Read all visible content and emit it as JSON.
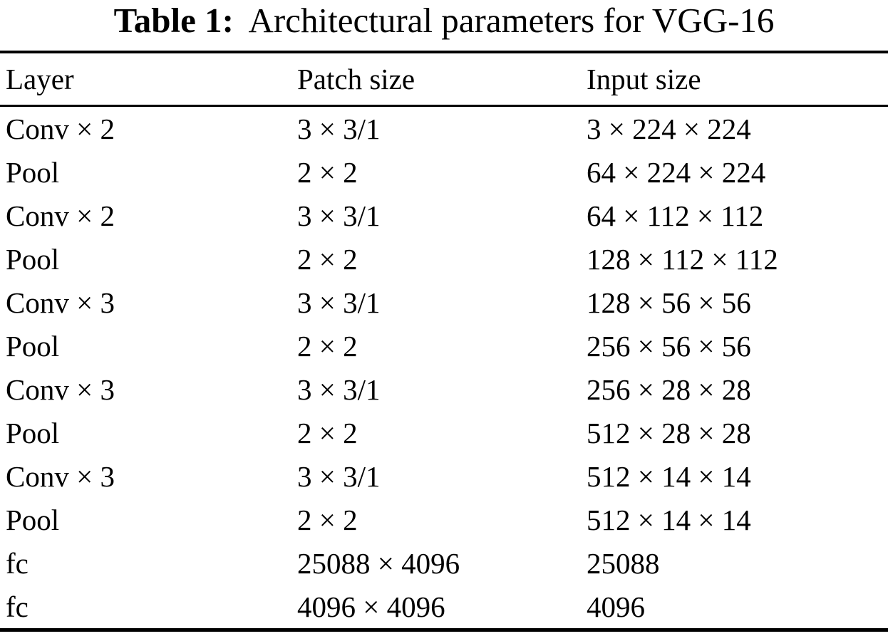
{
  "caption": {
    "label": "Table 1:",
    "text": "Architectural parameters for VGG-16"
  },
  "table": {
    "headers": [
      "Layer",
      "Patch size",
      "Input size"
    ],
    "rows": [
      {
        "layer": "Conv × 2",
        "patch_size": "3 × 3/1",
        "input_size": "3 × 224 × 224"
      },
      {
        "layer": "Pool",
        "patch_size": "2 × 2",
        "input_size": "64 × 224 × 224"
      },
      {
        "layer": "Conv × 2",
        "patch_size": "3 × 3/1",
        "input_size": "64 × 112 × 112"
      },
      {
        "layer": "Pool",
        "patch_size": "2 × 2",
        "input_size": "128 × 112 × 112"
      },
      {
        "layer": "Conv × 3",
        "patch_size": "3 × 3/1",
        "input_size": "128 × 56 × 56"
      },
      {
        "layer": "Pool",
        "patch_size": "2 × 2",
        "input_size": "256 × 56 × 56"
      },
      {
        "layer": "Conv × 3",
        "patch_size": "3 × 3/1",
        "input_size": "256 × 28 × 28"
      },
      {
        "layer": "Pool",
        "patch_size": "2 × 2",
        "input_size": "512 × 28 × 28"
      },
      {
        "layer": "Conv × 3",
        "patch_size": "3 × 3/1",
        "input_size": "512 × 14 × 14"
      },
      {
        "layer": "Pool",
        "patch_size": "2 × 2",
        "input_size": "512 × 14 × 14"
      },
      {
        "layer": "fc",
        "patch_size": "25088 × 4096",
        "input_size": "25088"
      },
      {
        "layer": "fc",
        "patch_size": "4096 × 4096",
        "input_size": "4096"
      }
    ]
  },
  "colors": {
    "text": "#000000",
    "background": "#ffffff",
    "rule": "#000000"
  }
}
